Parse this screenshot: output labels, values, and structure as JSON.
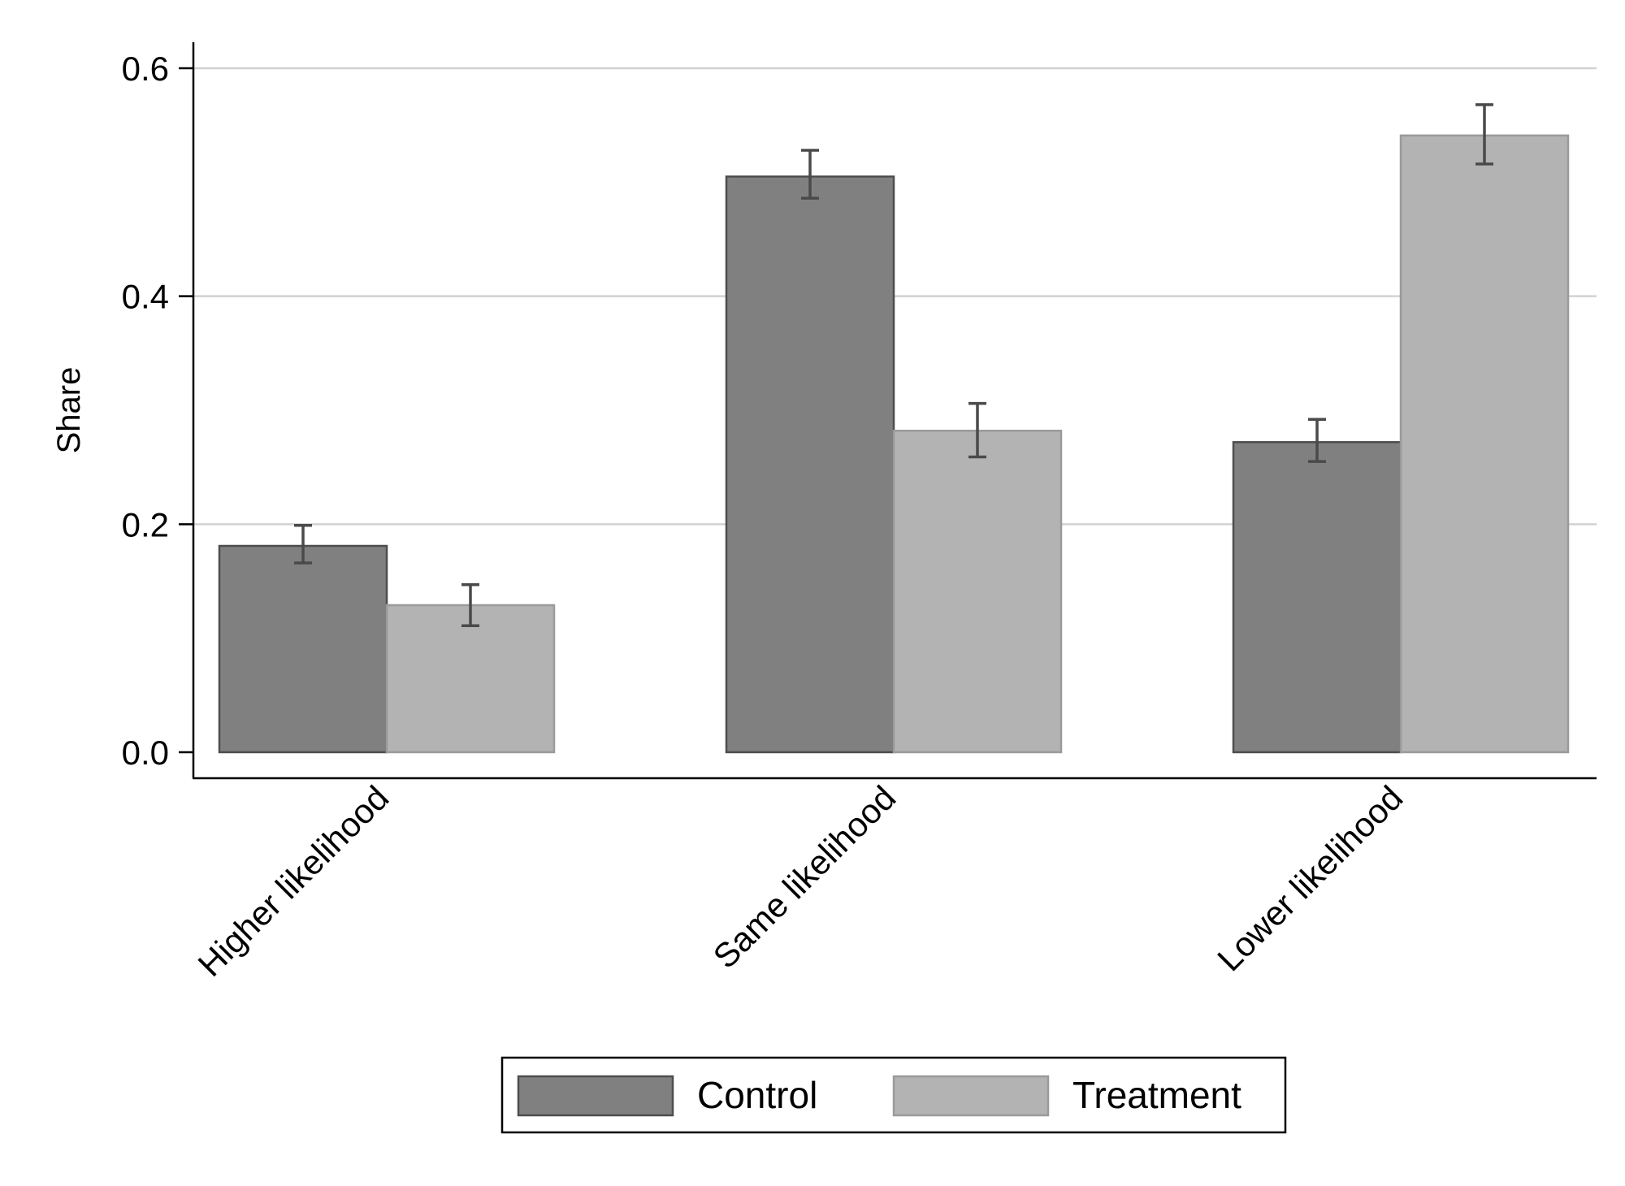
{
  "chart_data": {
    "type": "bar",
    "title": "",
    "xlabel": "",
    "ylabel": "Share",
    "ylim": [
      0,
      0.6
    ],
    "yticks": [
      0,
      0.2,
      0.4,
      0.6
    ],
    "ytick_labels": [
      "0.0",
      "0.2",
      "0.4",
      "0.6"
    ],
    "grid": true,
    "legend_position": "bottom",
    "categories": [
      "Higher likelihood",
      "Same likelihood",
      "Lower likelihood"
    ],
    "series": [
      {
        "name": "Control",
        "color": "#808080",
        "values": [
          0.181,
          0.505,
          0.272
        ],
        "ci_low": [
          0.166,
          0.486,
          0.255
        ],
        "ci_high": [
          0.199,
          0.528,
          0.292
        ]
      },
      {
        "name": "Treatment",
        "color": "#b3b3b3",
        "values": [
          0.129,
          0.282,
          0.541
        ],
        "ci_low": [
          0.111,
          0.259,
          0.516
        ],
        "ci_high": [
          0.147,
          0.306,
          0.568
        ]
      }
    ]
  }
}
